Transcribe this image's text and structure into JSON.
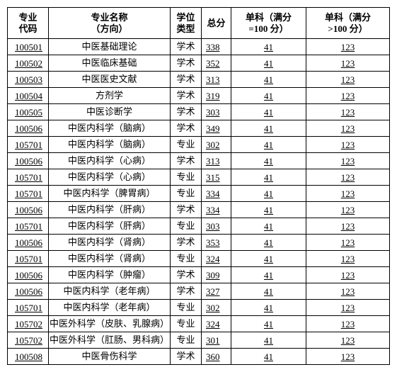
{
  "table": {
    "columns": [
      "专业\n代码",
      "专业名称\n（方向）",
      "学位\n类型",
      "总分",
      "单科（满分\n=100 分）",
      "单科（满分\n>100 分）"
    ],
    "rows": [
      [
        "100501",
        "中医基础理论",
        "学术",
        "338",
        "41",
        "123"
      ],
      [
        "100502",
        "中医临床基础",
        "学术",
        "352",
        "41",
        "123"
      ],
      [
        "100503",
        "中医医史文献",
        "学术",
        "313",
        "41",
        "123"
      ],
      [
        "100504",
        "方剂学",
        "学术",
        "319",
        "41",
        "123"
      ],
      [
        "100505",
        "中医诊断学",
        "学术",
        "303",
        "41",
        "123"
      ],
      [
        "100506",
        "中医内科学（脑病）",
        "学术",
        "349",
        "41",
        "123"
      ],
      [
        "105701",
        "中医内科学（脑病）",
        "专业",
        "302",
        "41",
        "123"
      ],
      [
        "100506",
        "中医内科学（心病）",
        "学术",
        "313",
        "41",
        "123"
      ],
      [
        "105701",
        "中医内科学（心病）",
        "专业",
        "315",
        "41",
        "123"
      ],
      [
        "105701",
        "中医内科学（脾胃病）",
        "专业",
        "334",
        "41",
        "123"
      ],
      [
        "100506",
        "中医内科学（肝病）",
        "学术",
        "334",
        "41",
        "123"
      ],
      [
        "105701",
        "中医内科学（肝病）",
        "专业",
        "303",
        "41",
        "123"
      ],
      [
        "100506",
        "中医内科学（肾病）",
        "学术",
        "353",
        "41",
        "123"
      ],
      [
        "105701",
        "中医内科学（肾病）",
        "专业",
        "324",
        "41",
        "123"
      ],
      [
        "100506",
        "中医内科学（肿瘤）",
        "学术",
        "309",
        "41",
        "123"
      ],
      [
        "100506",
        "中医内科学（老年病）",
        "学术",
        "327",
        "41",
        "123"
      ],
      [
        "105701",
        "中医内科学（老年病）",
        "专业",
        "302",
        "41",
        "123"
      ],
      [
        "105702",
        "中医外科学（皮肤、乳腺病）",
        "专业",
        "324",
        "41",
        "123"
      ],
      [
        "105702",
        "中医外科学（肛肠、男科病）",
        "专业",
        "301",
        "41",
        "123"
      ],
      [
        "100508",
        "中医骨伤科学",
        "学术",
        "360",
        "41",
        "123"
      ]
    ]
  }
}
